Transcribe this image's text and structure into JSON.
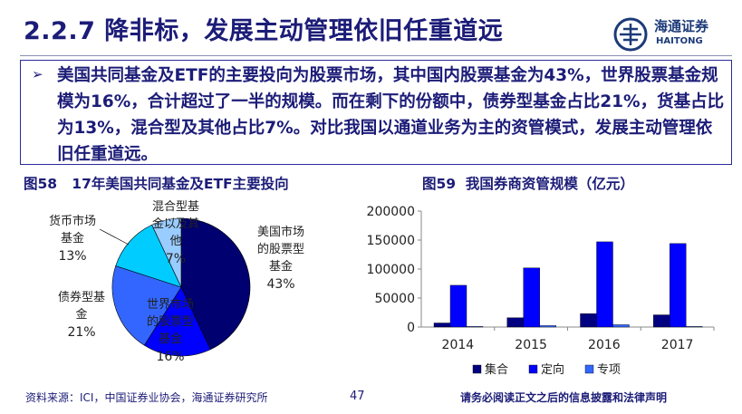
{
  "header": {
    "title": "2.2.7 降非标，发展主动管理依旧任重道远",
    "logo_cn": "海通证券",
    "logo_en": "HAITONG"
  },
  "summary": {
    "bullet": "➢",
    "text": "美国共同基金及ETF的主要投向为股票市场，其中国内股票基金为43%，世界股票基金规模为16%，合计超过了一半的规模。而在剩下的份额中，债券型基金占比21%，货基占比为13%，混合型及其他占比7%。对比我国以通道业务为主的资管模式，发展主动管理依旧任重道远。"
  },
  "figure58": {
    "label": "图58",
    "title": "17年美国共同基金及ETF主要投向"
  },
  "figure59": {
    "label": "图59",
    "title": "我国券商资管规模（亿元）"
  },
  "chart_data": [
    {
      "type": "pie",
      "slices": [
        {
          "label": "美国市场的股票型基金",
          "value": 43,
          "pct_text": "43%",
          "color": "#000070"
        },
        {
          "label": "世界市场的股票型基金",
          "value": 16,
          "pct_text": "16%",
          "color": "#0000ff"
        },
        {
          "label": "债券型基金",
          "value": 21,
          "pct_text": "21%",
          "color": "#3366ff"
        },
        {
          "label": "货币市场基金",
          "value": 13,
          "pct_text": "13%",
          "color": "#00ccff"
        },
        {
          "label": "混合型基金以及其他",
          "value": 7,
          "pct_text": "7%",
          "color": "#99ccff"
        }
      ]
    },
    {
      "type": "bar",
      "categories": [
        "2014",
        "2015",
        "2016",
        "2017"
      ],
      "series": [
        {
          "name": "集合",
          "values": [
            7000,
            16000,
            23000,
            21000
          ],
          "color": "#000080"
        },
        {
          "name": "定向",
          "values": [
            72000,
            102000,
            147000,
            144000
          ],
          "color": "#0000ff"
        },
        {
          "name": "专项",
          "values": [
            1000,
            2500,
            4000,
            1000
          ],
          "color": "#3366ff"
        }
      ],
      "ylim": [
        0,
        200000
      ],
      "yticks": [
        "0",
        "50000",
        "100000",
        "150000",
        "200000"
      ],
      "grid": false,
      "legend": "bottom"
    }
  ],
  "footer": {
    "source": "资料来源：ICI，中国证券业协会，海通证券研究所",
    "page": "47",
    "disclaimer": "请务必阅读正文之后的信息披露和法律声明"
  }
}
